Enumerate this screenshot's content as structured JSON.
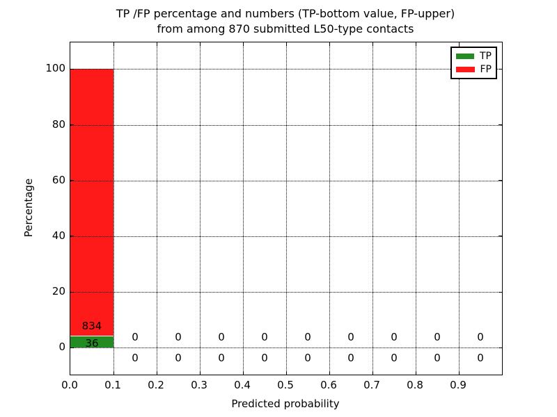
{
  "title": {
    "line1": "TP /FP percentage and numbers (TP-bottom value, FP-upper)",
    "line2": "from among 870 submitted L50-type contacts"
  },
  "axes": {
    "xlabel": "Predicted probability",
    "ylabel": "Percentage"
  },
  "legend": {
    "items": [
      {
        "label": "TP",
        "color": "#228b22"
      },
      {
        "label": "FP",
        "color": "#ff1a1a"
      }
    ],
    "position": "upper right"
  },
  "chart_data": {
    "type": "bar",
    "stacked": true,
    "title": "TP /FP percentage and numbers (TP-bottom value, FP-upper) from among 870 submitted L50-type contacts",
    "xlabel": "Predicted probability",
    "ylabel": "Percentage",
    "total_contacts": 870,
    "bin_width": 0.1,
    "bins": [
      {
        "x0": 0.0,
        "x1": 0.1,
        "tp_count": 36,
        "fp_count": 834,
        "tp_pct": 4.14,
        "fp_pct": 95.86
      },
      {
        "x0": 0.1,
        "x1": 0.2,
        "tp_count": 0,
        "fp_count": 0,
        "tp_pct": 0,
        "fp_pct": 0
      },
      {
        "x0": 0.2,
        "x1": 0.3,
        "tp_count": 0,
        "fp_count": 0,
        "tp_pct": 0,
        "fp_pct": 0
      },
      {
        "x0": 0.3,
        "x1": 0.4,
        "tp_count": 0,
        "fp_count": 0,
        "tp_pct": 0,
        "fp_pct": 0
      },
      {
        "x0": 0.4,
        "x1": 0.5,
        "tp_count": 0,
        "fp_count": 0,
        "tp_pct": 0,
        "fp_pct": 0
      },
      {
        "x0": 0.5,
        "x1": 0.6,
        "tp_count": 0,
        "fp_count": 0,
        "tp_pct": 0,
        "fp_pct": 0
      },
      {
        "x0": 0.6,
        "x1": 0.7,
        "tp_count": 0,
        "fp_count": 0,
        "tp_pct": 0,
        "fp_pct": 0
      },
      {
        "x0": 0.7,
        "x1": 0.8,
        "tp_count": 0,
        "fp_count": 0,
        "tp_pct": 0,
        "fp_pct": 0
      },
      {
        "x0": 0.8,
        "x1": 0.9,
        "tp_count": 0,
        "fp_count": 0,
        "tp_pct": 0,
        "fp_pct": 0
      },
      {
        "x0": 0.9,
        "x1": 1.0,
        "tp_count": 0,
        "fp_count": 0,
        "tp_pct": 0,
        "fp_pct": 0
      }
    ],
    "xticks": [
      {
        "value": 0.0,
        "label": "0.0"
      },
      {
        "value": 0.1,
        "label": "0.1"
      },
      {
        "value": 0.2,
        "label": "0.2"
      },
      {
        "value": 0.3,
        "label": "0.3"
      },
      {
        "value": 0.4,
        "label": "0.4"
      },
      {
        "value": 0.5,
        "label": "0.5"
      },
      {
        "value": 0.6,
        "label": "0.6"
      },
      {
        "value": 0.7,
        "label": "0.7"
      },
      {
        "value": 0.8,
        "label": "0.8"
      },
      {
        "value": 0.9,
        "label": "0.9"
      }
    ],
    "yticks": [
      {
        "value": 0,
        "label": "0"
      },
      {
        "value": 20,
        "label": "20"
      },
      {
        "value": 40,
        "label": "40"
      },
      {
        "value": 60,
        "label": "60"
      },
      {
        "value": 80,
        "label": "80"
      },
      {
        "value": 100,
        "label": "100"
      }
    ],
    "xlim": [
      0.0,
      1.0
    ],
    "ylim": [
      -9.7,
      109.6
    ],
    "grid": true,
    "grid_style": "dotted",
    "legend_position": "upper right",
    "colors": {
      "tp": "#228b22",
      "fp": "#ff1a1a"
    }
  }
}
